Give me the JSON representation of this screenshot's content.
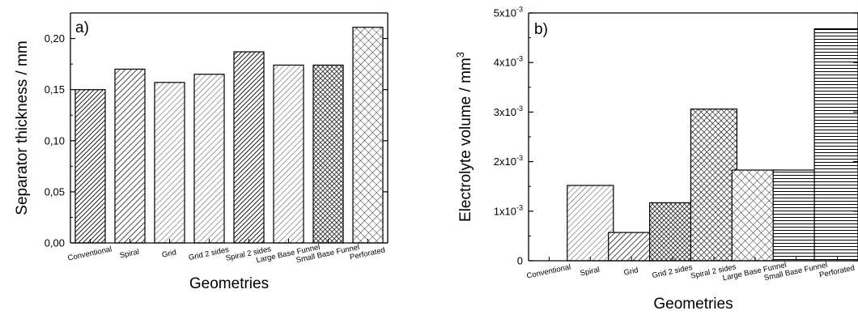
{
  "figure": {
    "categories": [
      "Conventional",
      "Spiral",
      "Grid",
      "Grid 2 sides",
      "Spiral 2 sides",
      "Large Base Funnel",
      "Small Base Funnel",
      "Perforated"
    ]
  },
  "chart_data": [
    {
      "type": "bar",
      "panel_label": "a)",
      "xlabel": "Geometries",
      "ylabel": "Separator thickness / mm",
      "categories": [
        "Conventional",
        "Spiral",
        "Grid",
        "Grid 2 sides",
        "Spiral 2 sides",
        "Large Base Funnel",
        "Small Base Funnel",
        "Perforated"
      ],
      "values": [
        0.15,
        0.17,
        0.157,
        0.165,
        0.187,
        0.174,
        0.174,
        0.211
      ],
      "ylim": [
        0.0,
        0.225
      ],
      "yticks": [
        0.0,
        0.05,
        0.1,
        0.15,
        0.2
      ],
      "ytick_labels": [
        "0,00",
        "0,05",
        "0,10",
        "0,15",
        "0,20"
      ],
      "patterns": [
        "diag-dense",
        "diag-medium",
        "diag-light",
        "diag-light",
        "diag-dense",
        "diag-light",
        "cross-dense",
        "cross-sparse"
      ]
    },
    {
      "type": "bar",
      "panel_label": "b)",
      "xlabel": "Geometries",
      "ylabel": "Electrolyte volume / mm",
      "ylabel_superscript": "3",
      "categories": [
        "Conventional",
        "Spiral",
        "Grid",
        "Grid 2 sides",
        "Spiral 2 sides",
        "Large Base Funnel",
        "Small Base Funnel",
        "Perforated"
      ],
      "values": [
        0.0,
        0.00152,
        0.00057,
        0.00117,
        0.00306,
        0.00183,
        0.00183,
        0.00468
      ],
      "ylim": [
        0.0,
        0.005
      ],
      "yticks": [
        0.0,
        0.001,
        0.002,
        0.003,
        0.004,
        0.005
      ],
      "ytick_labels": [
        {
          "base": "0",
          "exp": ""
        },
        {
          "base": "1x10",
          "exp": "-3"
        },
        {
          "base": "2x10",
          "exp": "-3"
        },
        {
          "base": "3x10",
          "exp": "-3"
        },
        {
          "base": "4x10",
          "exp": "-3"
        },
        {
          "base": "5x10",
          "exp": "-3"
        }
      ],
      "patterns": [
        "none",
        "diag-light",
        "diag-medium",
        "cross-dense",
        "cross-medium",
        "cross-sparse",
        "horiz",
        "horiz"
      ]
    }
  ]
}
